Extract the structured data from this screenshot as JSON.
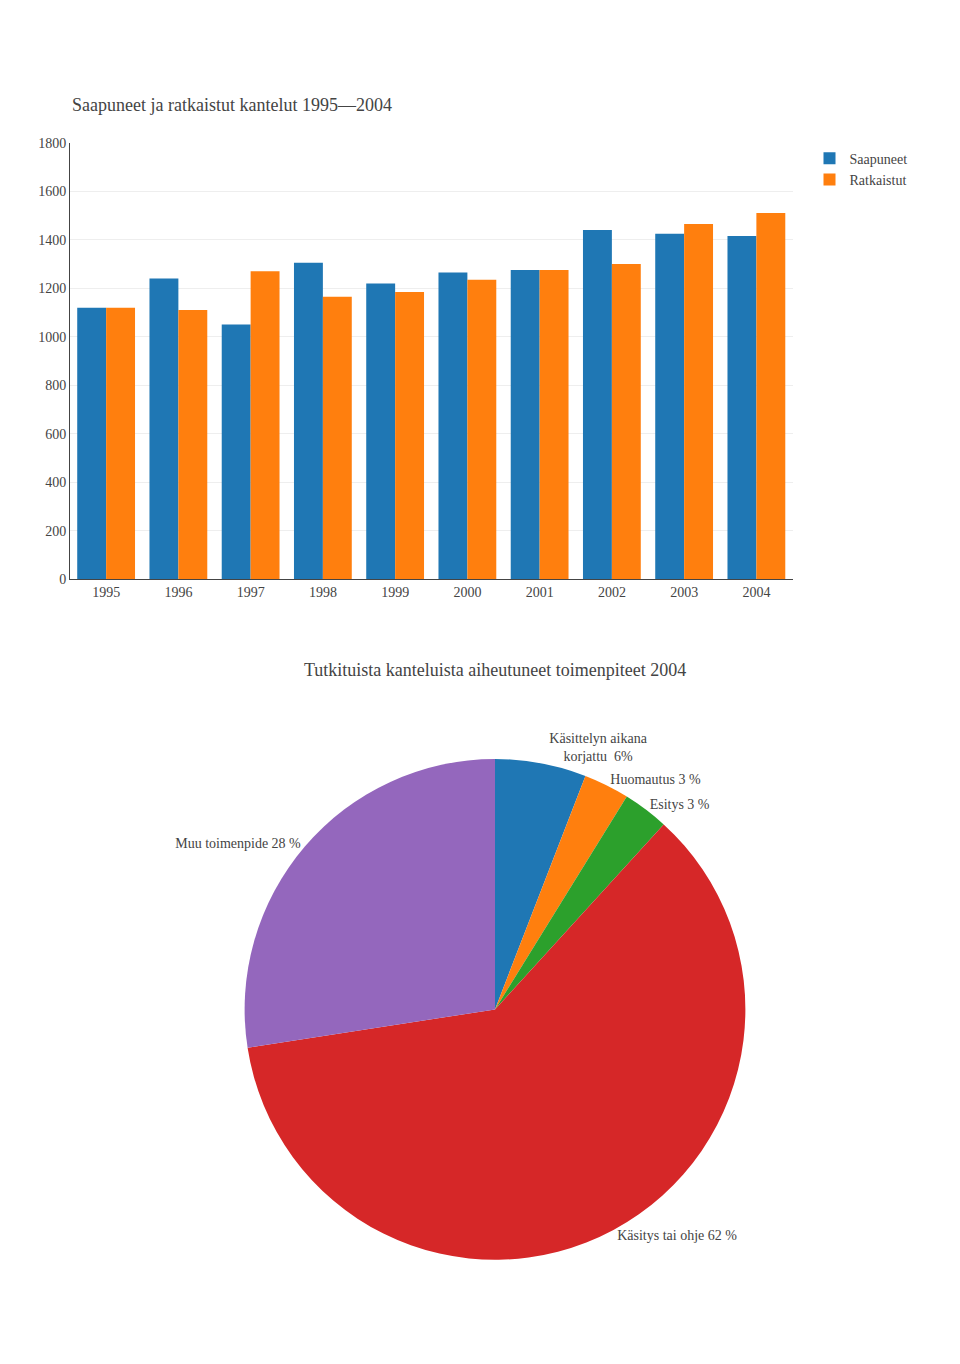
{
  "chart_data": [
    {
      "type": "bar",
      "title": "Saapuneet ja ratkaistut kantelut 1995—2004",
      "categories": [
        "1995",
        "1996",
        "1997",
        "1998",
        "1999",
        "2000",
        "2001",
        "2002",
        "2003",
        "2004"
      ],
      "series": [
        {
          "name": "Saapuneet",
          "values": [
            1120,
            1240,
            1050,
            1305,
            1220,
            1265,
            1275,
            1440,
            1425,
            1415
          ]
        },
        {
          "name": "Ratkaistut",
          "values": [
            1120,
            1110,
            1270,
            1165,
            1185,
            1235,
            1275,
            1300,
            1465,
            1510
          ]
        }
      ],
      "ylim": [
        0,
        1800
      ],
      "yticks": [
        0,
        200,
        400,
        600,
        800,
        1000,
        1200,
        1400,
        1600,
        1800
      ],
      "grid": true,
      "legend": "right"
    },
    {
      "type": "pie",
      "title": "Tutkituista kanteluista aiheutuneet toimenpiteet 2004",
      "values": [
        6,
        3,
        3,
        62,
        28
      ],
      "value_labels": [
        "Käsittelyn aikana\nkorjattu  6%",
        "Huomautus 3 %",
        "Esitys 3 %",
        "Käsitys tai ohje 62 %",
        "Muu toimenpide 28 %"
      ],
      "data_labels": true
    }
  ]
}
